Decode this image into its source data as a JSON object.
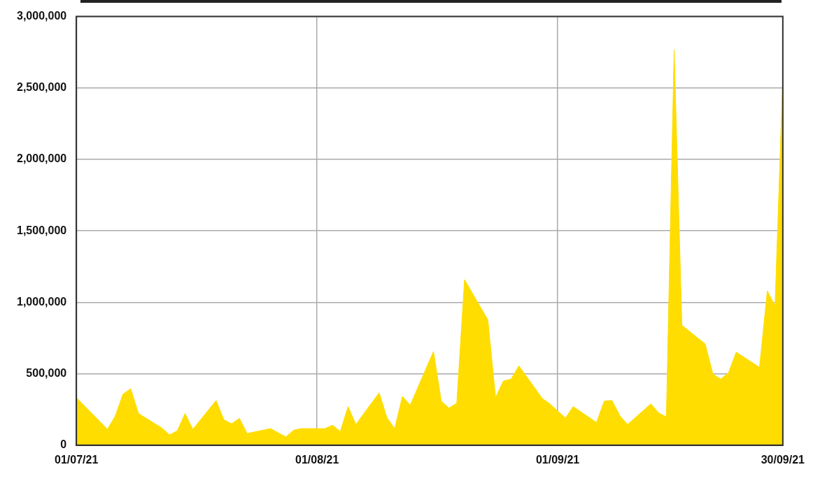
{
  "chart_data": {
    "type": "area",
    "x": [
      "2021-07-01",
      "2021-07-05",
      "2021-07-06",
      "2021-07-07",
      "2021-07-08",
      "2021-07-09",
      "2021-07-12",
      "2021-07-13",
      "2021-07-14",
      "2021-07-15",
      "2021-07-16",
      "2021-07-19",
      "2021-07-20",
      "2021-07-21",
      "2021-07-22",
      "2021-07-23",
      "2021-07-26",
      "2021-07-28",
      "2021-07-29",
      "2021-07-30",
      "2021-08-02",
      "2021-08-03",
      "2021-08-04",
      "2021-08-05",
      "2021-08-06",
      "2021-08-09",
      "2021-08-10",
      "2021-08-11",
      "2021-08-12",
      "2021-08-13",
      "2021-08-16",
      "2021-08-17",
      "2021-08-18",
      "2021-08-19",
      "2021-08-20",
      "2021-08-23",
      "2021-08-24",
      "2021-08-25",
      "2021-08-26",
      "2021-08-27",
      "2021-08-30",
      "2021-08-31",
      "2021-09-02",
      "2021-09-03",
      "2021-09-06",
      "2021-09-07",
      "2021-09-08",
      "2021-09-09",
      "2021-09-10",
      "2021-09-13",
      "2021-09-14",
      "2021-09-15",
      "2021-09-16",
      "2021-09-17",
      "2021-09-20",
      "2021-09-21",
      "2021-09-22",
      "2021-09-23",
      "2021-09-24",
      "2021-09-27",
      "2021-09-28",
      "2021-09-29",
      "2021-09-30"
    ],
    "values": [
      333000,
      111000,
      203000,
      357000,
      395000,
      222000,
      121000,
      72000,
      101000,
      222000,
      111000,
      313000,
      178000,
      150000,
      188000,
      82000,
      116000,
      58000,
      106000,
      116000,
      116000,
      140000,
      96000,
      270000,
      145000,
      367000,
      193000,
      116000,
      342000,
      280000,
      656000,
      309000,
      260000,
      294000,
      1158000,
      878000,
      333000,
      449000,
      463000,
      555000,
      328000,
      289000,
      190000,
      270000,
      159000,
      309000,
      313000,
      207000,
      145000,
      289000,
      227000,
      198000,
      2768000,
      839000,
      709000,
      497000,
      463000,
      506000,
      651000,
      545000,
      1080000,
      974000,
      2580000
    ],
    "color": "#ffdd00",
    "xlim": [
      "2021-07-01",
      "2021-09-30"
    ],
    "xticks": [
      {
        "value": "2021-07-01",
        "label": "01/07/21"
      },
      {
        "value": "2021-08-01",
        "label": "01/08/21"
      },
      {
        "value": "2021-09-01",
        "label": "01/09/21"
      },
      {
        "value": "2021-09-30",
        "label": "30/09/21"
      }
    ],
    "ylim": [
      0,
      3000000
    ],
    "yticks": [
      0,
      {
        "value": 500000,
        "label": "500,000"
      },
      {
        "value": 1000000,
        "label": "1,000,000"
      },
      {
        "value": 1500000,
        "label": "1,500,000"
      },
      {
        "value": 2000000,
        "label": "2,000,000"
      },
      {
        "value": 2500000,
        "label": "2,500,000"
      },
      {
        "value": 3000000,
        "label": "3,000,000"
      }
    ],
    "grid": true,
    "legend": false
  }
}
